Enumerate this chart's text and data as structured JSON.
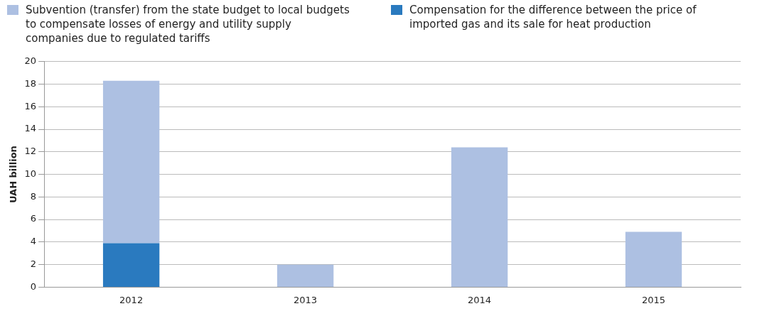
{
  "chart_data": {
    "type": "bar",
    "stacked": true,
    "categories": [
      "2012",
      "2013",
      "2014",
      "2015"
    ],
    "series": [
      {
        "name": "Compensation for the difference between the price of imported gas and its sale for heat production",
        "color": "#2a7abf",
        "values": [
          3.9,
          null,
          null,
          null
        ]
      },
      {
        "name": "Subvention (transfer) from the state budget to local budgets to compensate losses of energy and utility supply companies due to regulated tariffs",
        "color": "#adc0e2",
        "values": [
          14.4,
          2.0,
          12.4,
          4.9
        ]
      }
    ],
    "ylabel": "UAH billion",
    "ylim": [
      0,
      20
    ],
    "yticks": [
      0,
      2,
      4,
      6,
      8,
      10,
      12,
      14,
      16,
      18,
      20
    ],
    "grid": "y",
    "legend": "top"
  }
}
